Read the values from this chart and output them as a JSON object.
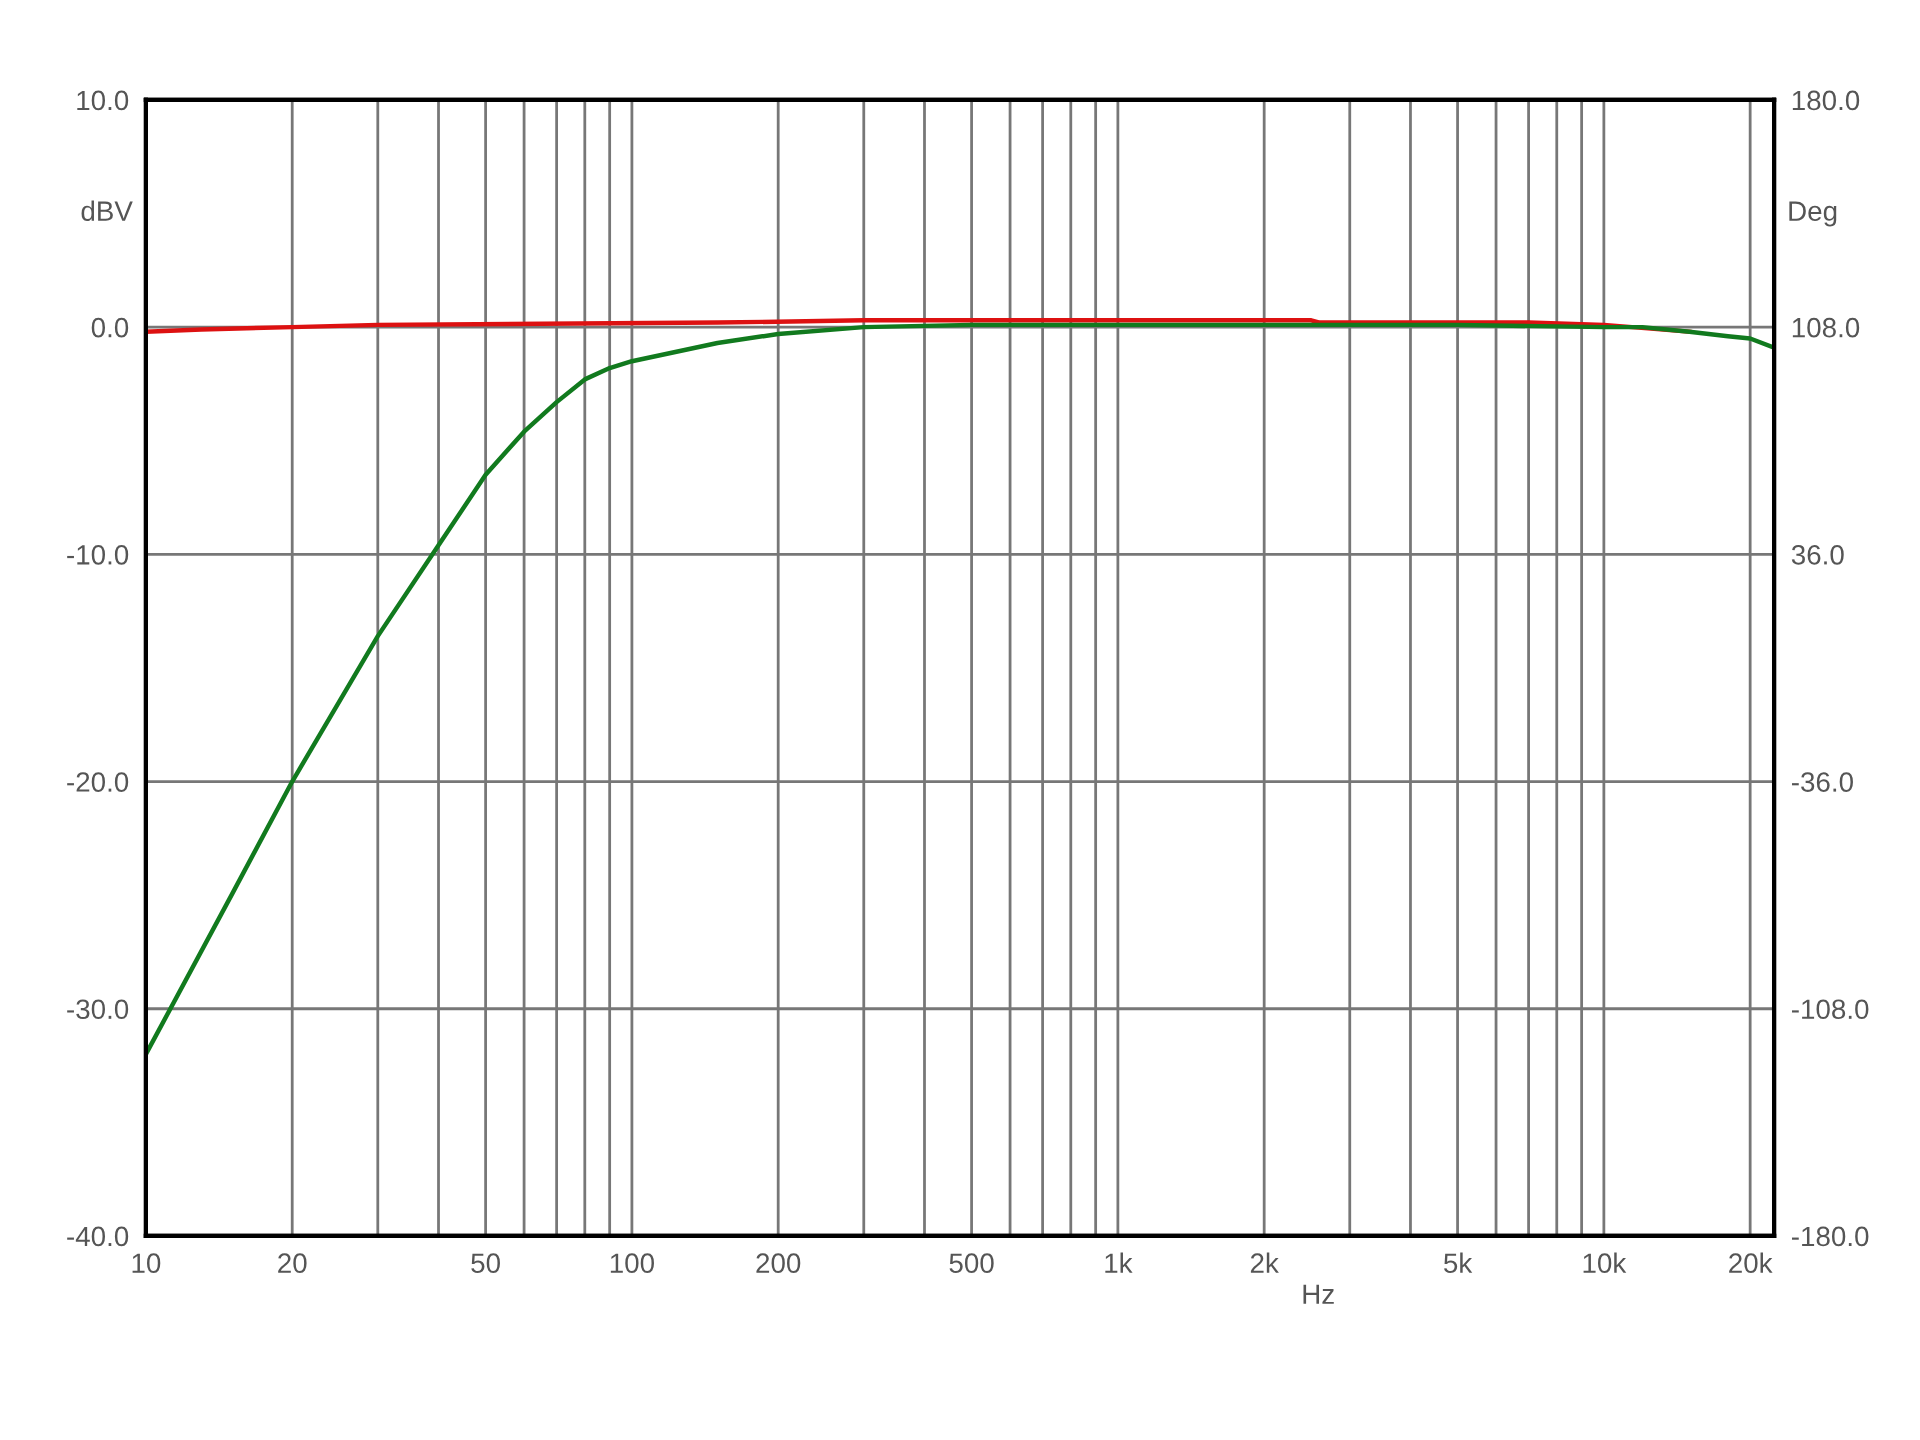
{
  "chart_data": {
    "type": "line",
    "xlabel": "Hz",
    "ylabel": "dBV",
    "y2label": "Deg",
    "log": "x",
    "grid": true,
    "marker": "none",
    "line_style": "solid",
    "xlim": [
      10,
      22400
    ],
    "ylim": [
      -40,
      10
    ],
    "y2lim": [
      -180,
      180
    ],
    "xticks": [
      10,
      20,
      {
        "value": 30,
        "label": null
      },
      {
        "value": 40,
        "label": null
      },
      50,
      {
        "value": 60,
        "label": null
      },
      {
        "value": 70,
        "label": null
      },
      {
        "value": 80,
        "label": null
      },
      {
        "value": 90,
        "label": null
      },
      100,
      200,
      {
        "value": 300,
        "label": null
      },
      {
        "value": 400,
        "label": null
      },
      500,
      {
        "value": 600,
        "label": null
      },
      {
        "value": 700,
        "label": null
      },
      {
        "value": 800,
        "label": null
      },
      {
        "value": 900,
        "label": null
      },
      {
        "value": 1000,
        "label": "1k"
      },
      {
        "value": 2000,
        "label": "2k"
      },
      {
        "value": 3000,
        "label": null
      },
      {
        "value": 4000,
        "label": null
      },
      {
        "value": 5000,
        "label": "5k"
      },
      {
        "value": 6000,
        "label": null
      },
      {
        "value": 7000,
        "label": null
      },
      {
        "value": 8000,
        "label": null
      },
      {
        "value": 9000,
        "label": null
      },
      {
        "value": 10000,
        "label": "10k"
      },
      {
        "value": 20000,
        "label": "20k"
      }
    ],
    "yticks": [
      {
        "value": -40,
        "label": "-40.0"
      },
      {
        "value": -30,
        "label": "-30.0"
      },
      {
        "value": -20,
        "label": "-20.0"
      },
      {
        "value": -10,
        "label": "-10.0"
      },
      {
        "value": 0,
        "label": "0.0"
      },
      {
        "value": 10,
        "label": "10.0"
      }
    ],
    "y2ticks": [
      {
        "value": -180,
        "label": "-180.0"
      },
      {
        "value": -108,
        "label": "-108.0"
      },
      {
        "value": -36,
        "label": "-36.0"
      },
      {
        "value": 36,
        "label": "36.0"
      },
      {
        "value": 108,
        "label": "108.0"
      },
      {
        "value": 180,
        "label": "180.0"
      }
    ],
    "series": [
      {
        "color": "#dd1111",
        "x": [
          10,
          13,
          20,
          30,
          150,
          300,
          2500,
          2600,
          7000,
          10000,
          15000
        ],
        "values": [
          -0.2,
          -0.1,
          0.0,
          0.1,
          0.2,
          0.3,
          0.3,
          0.2,
          0.2,
          0.1,
          -0.2
        ]
      },
      {
        "color": "#117a1e",
        "x": [
          10,
          15,
          20,
          30,
          40,
          50,
          60,
          70,
          80,
          90,
          100,
          150,
          200,
          300,
          500,
          1000,
          2000,
          5000,
          10000,
          12000,
          15000,
          18000,
          20000,
          22400
        ],
        "values": [
          -32.0,
          -25.0,
          -20.0,
          -13.6,
          -9.6,
          -6.5,
          -4.6,
          -3.3,
          -2.3,
          -1.8,
          -1.5,
          -0.7,
          -0.3,
          0.0,
          0.1,
          0.1,
          0.1,
          0.1,
          0.0,
          0.0,
          -0.2,
          -0.4,
          -0.5,
          -0.9
        ]
      }
    ]
  }
}
